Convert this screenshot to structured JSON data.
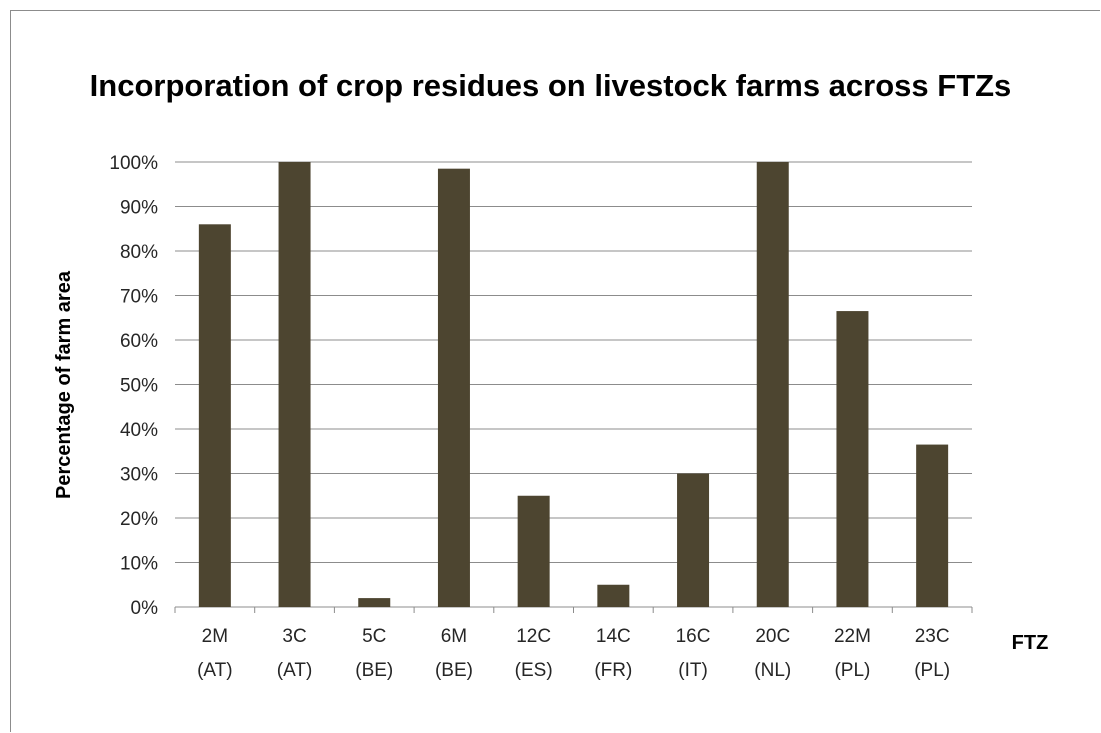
{
  "chart_data": {
    "type": "bar",
    "title": "Incorporation of crop residues on livestock farms across FTZs",
    "xlabel": "FTZ",
    "ylabel": "Percentage of farm area",
    "categories": [
      [
        "2M",
        "(AT)"
      ],
      [
        "3C",
        "(AT)"
      ],
      [
        "5C",
        "(BE)"
      ],
      [
        "6M",
        "(BE)"
      ],
      [
        "12C",
        "(ES)"
      ],
      [
        "14C",
        "(FR)"
      ],
      [
        "16C",
        "(IT)"
      ],
      [
        "20C",
        "(NL)"
      ],
      [
        "22M",
        "(PL)"
      ],
      [
        "23C",
        "(PL)"
      ]
    ],
    "values": [
      86,
      100,
      2,
      98.5,
      25,
      5,
      30,
      100,
      66.5,
      36.5
    ],
    "ylim": [
      0,
      100
    ],
    "yticks": [
      "0%",
      "10%",
      "20%",
      "30%",
      "40%",
      "50%",
      "60%",
      "70%",
      "80%",
      "90%",
      "100%"
    ],
    "grid": true,
    "legend": "none",
    "bar_color": "#4d4530",
    "grid_color": "#8c8c8c"
  }
}
